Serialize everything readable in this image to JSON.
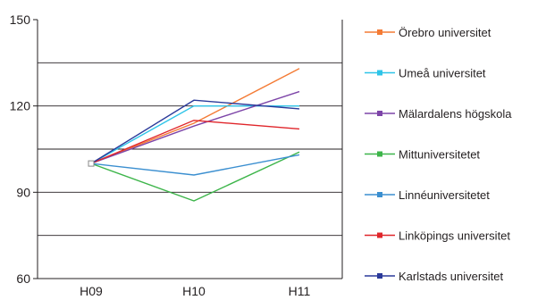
{
  "chart_data": {
    "type": "line",
    "categories": [
      "H09",
      "H10",
      "H11"
    ],
    "ylim": [
      60,
      150
    ],
    "yticks": [
      60,
      90,
      120,
      150
    ],
    "grid_lines": [
      75,
      90,
      105,
      120,
      135
    ],
    "grid": true,
    "legend_position": "right",
    "series": [
      {
        "name": "Örebro universitet",
        "color": "#f47b35",
        "values": [
          100,
          114,
          133
        ]
      },
      {
        "name": "Umeå universitet",
        "color": "#2ec4e8",
        "values": [
          100,
          120,
          120
        ]
      },
      {
        "name": "Mälardalens högskola",
        "color": "#7d45a8",
        "values": [
          100,
          113,
          125
        ]
      },
      {
        "name": "Mittuniversitetet",
        "color": "#3db54a",
        "values": [
          100,
          87,
          104
        ]
      },
      {
        "name": "Linnéuniversitetet",
        "color": "#3b8fd0",
        "values": [
          100,
          96,
          103
        ]
      },
      {
        "name": "Linköpings universitet",
        "color": "#e0262b",
        "values": [
          100,
          115,
          112
        ]
      },
      {
        "name": "Karlstads universitet",
        "color": "#2b3a9a",
        "values": [
          100,
          122,
          119
        ]
      }
    ]
  }
}
